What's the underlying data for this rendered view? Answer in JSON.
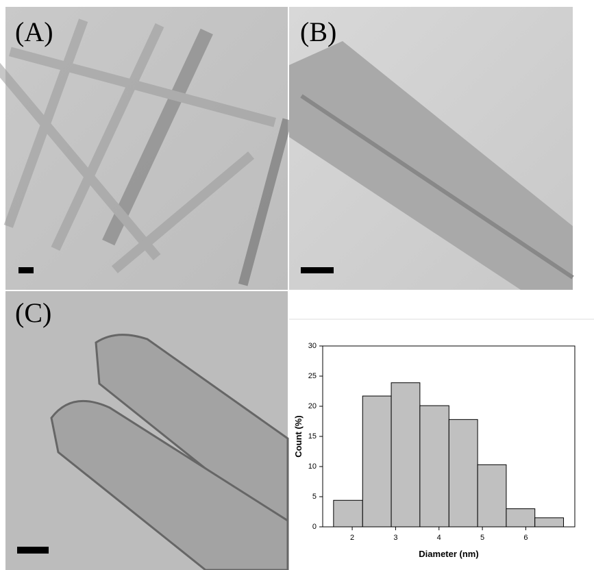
{
  "panels": [
    {
      "label": "(A)"
    },
    {
      "label": "(B)"
    },
    {
      "label": "(C)"
    }
  ],
  "chart_data": {
    "type": "histogram",
    "x_label": "Diameter (nm)",
    "y_label": "Count (%)",
    "bins": [
      1.57,
      2.24,
      2.9,
      3.56,
      4.23,
      4.89,
      5.55,
      6.21,
      6.87
    ],
    "values": [
      4.4,
      21.7,
      23.9,
      20.1,
      17.8,
      10.3,
      3.0,
      1.5
    ],
    "color": "#c0c0c0",
    "xlim": [
      1.32,
      7.13
    ],
    "xticks": [
      2,
      3,
      4,
      5,
      6
    ],
    "ylim": [
      0,
      30
    ],
    "yticks": [
      0,
      5,
      10,
      15,
      20,
      25,
      30
    ]
  }
}
